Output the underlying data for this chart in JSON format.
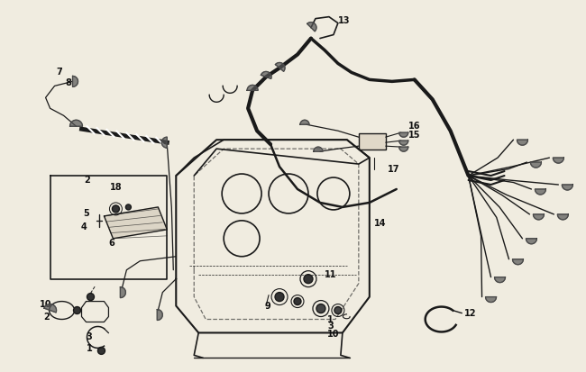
{
  "bg_color": "#f0ece0",
  "line_color": "#1a1a1a",
  "fig_width": 6.5,
  "fig_height": 4.13,
  "dpi": 100
}
